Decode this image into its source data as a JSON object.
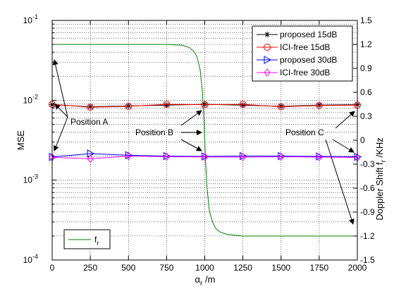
{
  "chart_data": {
    "type": "line",
    "left_axis": {
      "label": "MSE",
      "scale": "log",
      "range": [
        0.0001,
        0.1
      ],
      "ticks": [
        {
          "value": 0.1,
          "base": "10",
          "exp": "-1"
        },
        {
          "value": 0.01,
          "base": "10",
          "exp": "-2"
        },
        {
          "value": 0.001,
          "base": "10",
          "exp": "-3"
        },
        {
          "value": 0.0001,
          "base": "10",
          "exp": "-4"
        }
      ]
    },
    "right_axis": {
      "label_main": "Doppler Shift f",
      "label_sub": "r",
      "label_unit": " /KHz",
      "range": [
        -1.5,
        1.5
      ],
      "ticks": [
        "1.5",
        "1.2",
        "0.9",
        "0.6",
        "0.3",
        "0",
        "-0.3",
        "-0.6",
        "-0.9",
        "-1.2",
        "-1.5"
      ]
    },
    "x_axis": {
      "label_main": "α",
      "label_sub": "r",
      "label_unit": " /m",
      "range": [
        0,
        2000
      ],
      "ticks": [
        "0",
        "250",
        "500",
        "750",
        "1000",
        "1250",
        "1500",
        "1750",
        "2000"
      ]
    },
    "grid": true,
    "series": [
      {
        "name": "proposed 15dB",
        "color": "#000000",
        "marker": "star",
        "axis": "left",
        "x": [
          0,
          250,
          500,
          750,
          1000,
          1250,
          1500,
          1750,
          2000
        ],
        "y": [
          0.0088,
          0.0083,
          0.0085,
          0.0087,
          0.0089,
          0.0087,
          0.0084,
          0.0087,
          0.0088
        ]
      },
      {
        "name": "ICI-free 15dB",
        "color": "#ff0000",
        "marker": "circle",
        "axis": "left",
        "x": [
          0,
          250,
          500,
          750,
          1000,
          1250,
          1500,
          1750,
          2000
        ],
        "y": [
          0.0089,
          0.0082,
          0.0084,
          0.0089,
          0.0088,
          0.0089,
          0.0083,
          0.0086,
          0.0087
        ]
      },
      {
        "name": "proposed 30dB",
        "color": "#0000ff",
        "marker": "triangle-right",
        "axis": "left",
        "x": [
          0,
          250,
          500,
          750,
          1000,
          1250,
          1500,
          1750,
          2000
        ],
        "y": [
          0.00195,
          0.00215,
          0.00205,
          0.002,
          0.00198,
          0.002,
          0.002,
          0.00198,
          0.00196
        ]
      },
      {
        "name": "ICI-free 30dB",
        "color": "#ff00ff",
        "marker": "diamond",
        "axis": "left",
        "x": [
          0,
          250,
          500,
          750,
          1000,
          1250,
          1500,
          1750,
          2000
        ],
        "y": [
          0.00193,
          0.00185,
          0.002,
          0.00196,
          0.00195,
          0.00194,
          0.00196,
          0.00194,
          0.00192
        ]
      }
    ],
    "doppler_series": {
      "name": "f",
      "name_sub": "r",
      "color": "#007f00",
      "axis": "right",
      "x": [
        0,
        250,
        500,
        750,
        850,
        900,
        930,
        950,
        970,
        985,
        995,
        1000,
        1005,
        1015,
        1030,
        1050,
        1070,
        1100,
        1150,
        1250,
        1500,
        1750,
        2000
      ],
      "y": [
        1.2,
        1.2,
        1.2,
        1.2,
        1.19,
        1.16,
        1.11,
        1.04,
        0.88,
        0.6,
        0.25,
        0.0,
        -0.25,
        -0.6,
        -0.88,
        -1.02,
        -1.1,
        -1.15,
        -1.18,
        -1.2,
        -1.2,
        -1.2,
        -1.2
      ]
    },
    "annotations": [
      {
        "text": "Position A"
      },
      {
        "text": "Position B"
      },
      {
        "text": "Position C"
      }
    ]
  }
}
